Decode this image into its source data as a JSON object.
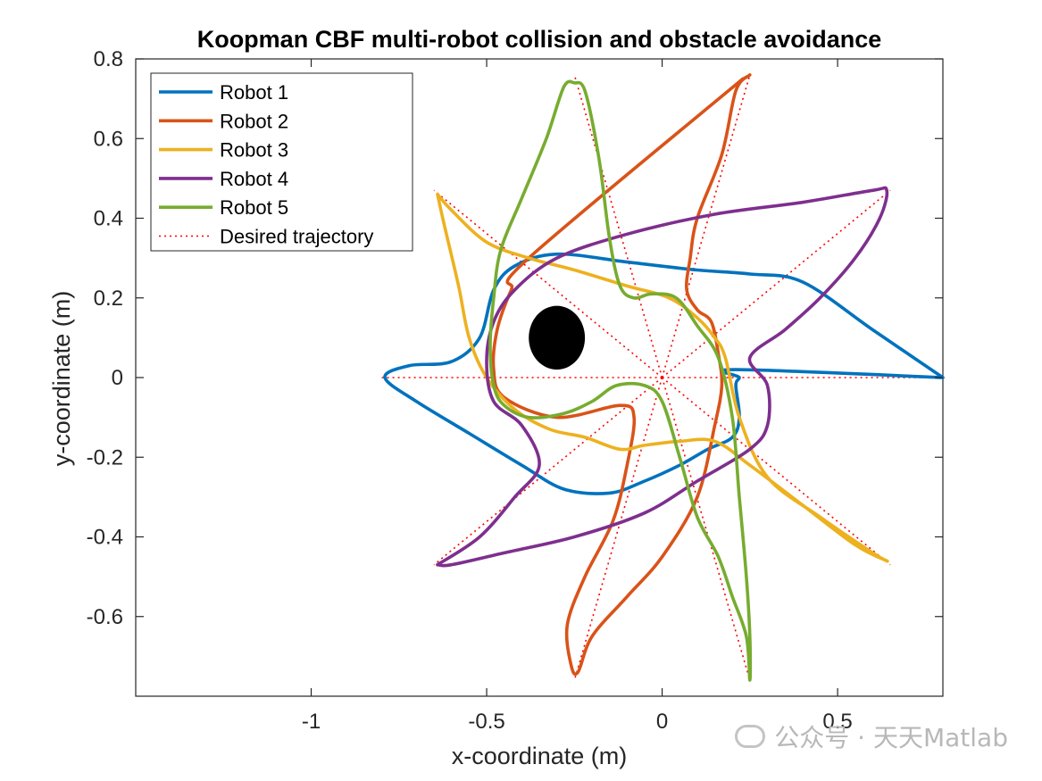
{
  "watermark": "公众号 · 天天Matlab",
  "chart_data": {
    "type": "line",
    "title": "Koopman CBF multi-robot collision and obstacle avoidance",
    "xlabel": "x-coordinate (m)",
    "ylabel": "y-coordinate (m)",
    "xlim": [
      -1.5,
      0.8
    ],
    "ylim": [
      -0.8,
      0.8
    ],
    "xticks": [
      -1,
      -0.5,
      0,
      0.5
    ],
    "xtick_labels": [
      "-1",
      "-0.5",
      "0",
      "0.5"
    ],
    "yticks": [
      -0.6,
      -0.4,
      -0.2,
      0,
      0.2,
      0.4,
      0.6,
      0.8
    ],
    "ytick_labels": [
      "-0.6",
      "-0.4",
      "-0.2",
      "0",
      "0.2",
      "0.4",
      "0.6",
      "0.8"
    ],
    "grid": false,
    "legend_position": "top-left",
    "obstacle": {
      "center": [
        -0.3,
        0.1
      ],
      "radius": 0.08,
      "color": "#000000"
    },
    "series": [
      {
        "name": "Robot 1",
        "color": "#0072BD",
        "points": [
          [
            0.8,
            0
          ],
          [
            0.6,
            0.12
          ],
          [
            0.4,
            0.24
          ],
          [
            0.25,
            0.26
          ],
          [
            0.1,
            0.27
          ],
          [
            -0.1,
            0.29
          ],
          [
            -0.3,
            0.31
          ],
          [
            -0.42,
            0.28
          ],
          [
            -0.48,
            0.22
          ],
          [
            -0.52,
            0.1
          ],
          [
            -0.6,
            0.04
          ],
          [
            -0.72,
            0.03
          ],
          [
            -0.79,
            0
          ],
          [
            -0.7,
            -0.06
          ],
          [
            -0.55,
            -0.14
          ],
          [
            -0.4,
            -0.22
          ],
          [
            -0.28,
            -0.28
          ],
          [
            -0.15,
            -0.29
          ],
          [
            -0.05,
            -0.26
          ],
          [
            0.05,
            -0.22
          ],
          [
            0.13,
            -0.18
          ],
          [
            0.2,
            -0.15
          ],
          [
            0.22,
            -0.1
          ],
          [
            0.21,
            -0.02
          ],
          [
            0.22,
            0
          ],
          [
            0.21,
            0.02
          ],
          [
            0.8,
            0
          ]
        ]
      },
      {
        "name": "Robot 2",
        "color": "#D95319",
        "points": [
          [
            0.25,
            0.76
          ],
          [
            0.21,
            0.72
          ],
          [
            0.17,
            0.56
          ],
          [
            0.1,
            0.4
          ],
          [
            0.08,
            0.3
          ],
          [
            0.07,
            0.22
          ],
          [
            0.1,
            0.17
          ],
          [
            0.14,
            0.14
          ],
          [
            0.16,
            0.06
          ],
          [
            0.17,
            -0.02
          ],
          [
            0.15,
            -0.12
          ],
          [
            0.1,
            -0.3
          ],
          [
            0.0,
            -0.45
          ],
          [
            -0.1,
            -0.55
          ],
          [
            -0.2,
            -0.65
          ],
          [
            -0.24,
            -0.74
          ],
          [
            -0.26,
            -0.72
          ],
          [
            -0.27,
            -0.62
          ],
          [
            -0.22,
            -0.5
          ],
          [
            -0.14,
            -0.36
          ],
          [
            -0.1,
            -0.22
          ],
          [
            -0.08,
            -0.1
          ],
          [
            -0.12,
            -0.07
          ],
          [
            -0.3,
            -0.1
          ],
          [
            -0.45,
            -0.05
          ],
          [
            -0.48,
            0.02
          ],
          [
            -0.47,
            0.12
          ],
          [
            -0.43,
            0.22
          ],
          [
            -0.38,
            0.3
          ],
          [
            0.23,
            0.75
          ]
        ]
      },
      {
        "name": "Robot 3",
        "color": "#EDB120",
        "points": [
          [
            -0.64,
            0.46
          ],
          [
            -0.62,
            0.38
          ],
          [
            -0.58,
            0.23
          ],
          [
            -0.55,
            0.1
          ],
          [
            -0.5,
            0.0
          ],
          [
            -0.42,
            -0.08
          ],
          [
            -0.32,
            -0.13
          ],
          [
            -0.22,
            -0.15
          ],
          [
            -0.12,
            -0.18
          ],
          [
            -0.05,
            -0.17
          ],
          [
            0.05,
            -0.16
          ],
          [
            0.15,
            -0.16
          ],
          [
            0.25,
            -0.22
          ],
          [
            0.4,
            -0.32
          ],
          [
            0.55,
            -0.42
          ],
          [
            0.64,
            -0.46
          ],
          [
            0.6,
            -0.44
          ],
          [
            0.45,
            -0.35
          ],
          [
            0.3,
            -0.25
          ],
          [
            0.22,
            -0.1
          ],
          [
            0.18,
            0.05
          ],
          [
            0.15,
            0.1
          ],
          [
            0.1,
            0.15
          ],
          [
            0.02,
            0.2
          ],
          [
            -0.1,
            0.23
          ],
          [
            -0.25,
            0.27
          ],
          [
            -0.38,
            0.3
          ],
          [
            -0.5,
            0.34
          ],
          [
            -0.6,
            0.42
          ],
          [
            -0.64,
            0.46
          ]
        ]
      },
      {
        "name": "Robot 4",
        "color": "#7E2F8E",
        "points": [
          [
            -0.64,
            -0.47
          ],
          [
            -0.52,
            -0.4
          ],
          [
            -0.42,
            -0.3
          ],
          [
            -0.35,
            -0.22
          ],
          [
            -0.4,
            -0.12
          ],
          [
            -0.48,
            -0.06
          ],
          [
            -0.5,
            0.04
          ],
          [
            -0.48,
            0.14
          ],
          [
            -0.42,
            0.22
          ],
          [
            -0.3,
            0.3
          ],
          [
            -0.1,
            0.36
          ],
          [
            0.15,
            0.41
          ],
          [
            0.4,
            0.44
          ],
          [
            0.6,
            0.47
          ],
          [
            0.64,
            0.47
          ],
          [
            0.62,
            0.4
          ],
          [
            0.55,
            0.3
          ],
          [
            0.45,
            0.2
          ],
          [
            0.35,
            0.12
          ],
          [
            0.25,
            0.05
          ],
          [
            0.3,
            -0.02
          ],
          [
            0.3,
            -0.12
          ],
          [
            0.25,
            -0.18
          ],
          [
            0.1,
            -0.26
          ],
          [
            -0.05,
            -0.34
          ],
          [
            -0.25,
            -0.4
          ],
          [
            -0.45,
            -0.44
          ],
          [
            -0.6,
            -0.47
          ],
          [
            -0.64,
            -0.47
          ]
        ]
      },
      {
        "name": "Robot 5",
        "color": "#77AC30",
        "points": [
          [
            -0.25,
            0.74
          ],
          [
            -0.28,
            0.73
          ],
          [
            -0.33,
            0.6
          ],
          [
            -0.4,
            0.45
          ],
          [
            -0.46,
            0.32
          ],
          [
            -0.48,
            0.2
          ],
          [
            -0.49,
            0.08
          ],
          [
            -0.48,
            -0.02
          ],
          [
            -0.45,
            -0.07
          ],
          [
            -0.38,
            -0.1
          ],
          [
            -0.28,
            -0.09
          ],
          [
            -0.2,
            -0.06
          ],
          [
            -0.13,
            -0.02
          ],
          [
            -0.05,
            -0.02
          ],
          [
            0.0,
            -0.06
          ],
          [
            0.05,
            -0.2
          ],
          [
            0.1,
            -0.35
          ],
          [
            0.16,
            -0.45
          ],
          [
            0.2,
            -0.55
          ],
          [
            0.24,
            -0.65
          ],
          [
            0.25,
            -0.76
          ],
          [
            0.25,
            -0.65
          ],
          [
            0.24,
            -0.5
          ],
          [
            0.22,
            -0.3
          ],
          [
            0.2,
            -0.1
          ],
          [
            0.16,
            0.05
          ],
          [
            0.1,
            0.13
          ],
          [
            0.04,
            0.2
          ],
          [
            -0.03,
            0.21
          ],
          [
            -0.08,
            0.2
          ],
          [
            -0.12,
            0.23
          ],
          [
            -0.15,
            0.35
          ],
          [
            -0.18,
            0.55
          ],
          [
            -0.22,
            0.72
          ],
          [
            -0.25,
            0.74
          ]
        ]
      }
    ],
    "desired": {
      "name": "Desired trajectory",
      "color": "#FF0000",
      "endpoints": [
        [
          0.8,
          0
        ],
        [
          0.25,
          0.76
        ],
        [
          -0.25,
          0.76
        ],
        [
          -0.65,
          0.47
        ],
        [
          -0.8,
          0
        ],
        [
          -0.65,
          -0.47
        ],
        [
          -0.25,
          -0.76
        ],
        [
          0.25,
          -0.76
        ],
        [
          0.65,
          -0.47
        ],
        [
          0.65,
          0.47
        ]
      ]
    }
  }
}
